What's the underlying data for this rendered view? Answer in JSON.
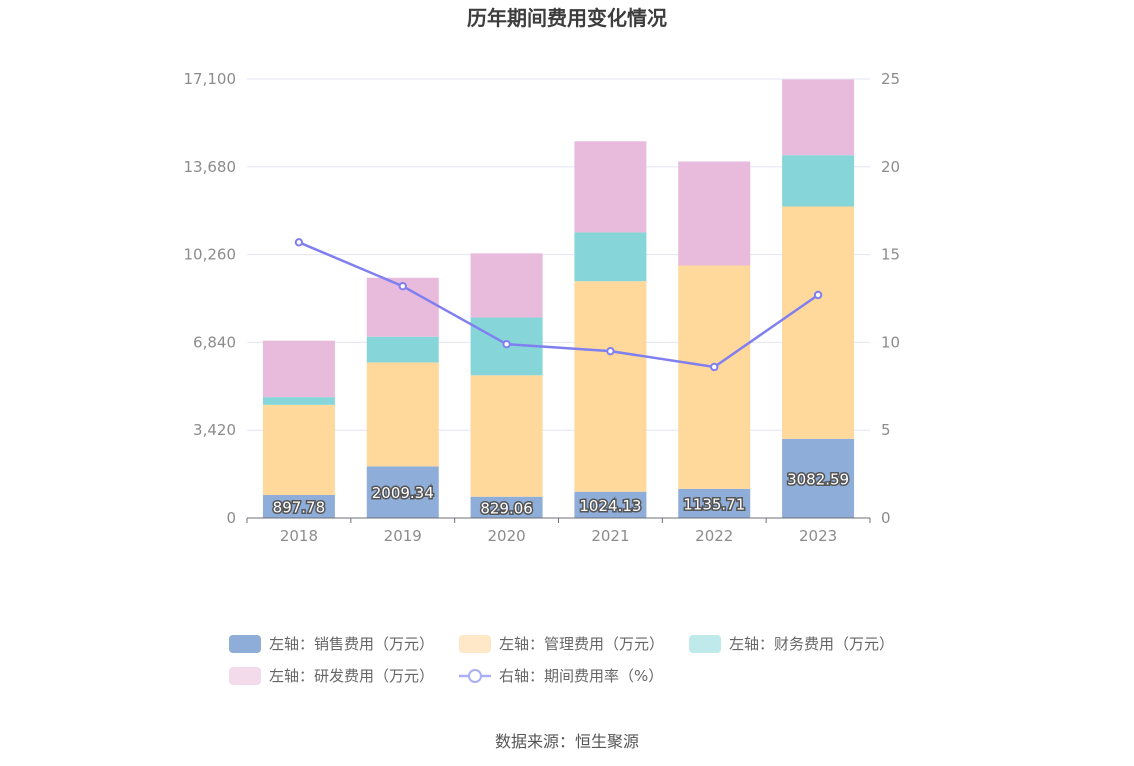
{
  "chart_data": {
    "type": "bar",
    "title": "历年期间费用变化情况",
    "categories": [
      "2018",
      "2019",
      "2020",
      "2021",
      "2022",
      "2023"
    ],
    "y_left": {
      "ticks": [
        "0",
        "3,420",
        "6,840",
        "10,260",
        "13,680",
        "17,100"
      ],
      "min": 0,
      "max": 17100
    },
    "y_right": {
      "ticks": [
        "0",
        "5",
        "10",
        "15",
        "20",
        "25"
      ],
      "min": 0,
      "max": 25
    },
    "grid": true,
    "legend_position": "bottom",
    "series": [
      {
        "name": "左轴：销售费用（万元）",
        "type": "bar",
        "axis": "left",
        "color": "#8eadd9",
        "show_labels": true,
        "values": [
          897.78,
          2009.34,
          829.06,
          1024.13,
          1135.71,
          3082.59
        ],
        "labels": [
          "897.78",
          "2009.34",
          "829.06",
          "1024.13",
          "1135.71",
          "3082.59"
        ]
      },
      {
        "name": "左轴：管理费用（万元）",
        "type": "bar",
        "axis": "left",
        "color": "#ffd89c",
        "values": [
          3510,
          4050,
          4730,
          8200,
          8700,
          9050
        ]
      },
      {
        "name": "左轴：财务费用（万元）",
        "type": "bar",
        "axis": "left",
        "color": "#86d6d9",
        "values": [
          300,
          1000,
          2250,
          1900,
          0,
          2000
        ]
      },
      {
        "name": "左轴：研发费用（万元）",
        "type": "bar",
        "axis": "left",
        "color": "#e8badb",
        "values": [
          2200,
          2300,
          2500,
          3550,
          4050,
          2950
        ]
      },
      {
        "name": "右轴：期间费用率（%）",
        "type": "line",
        "axis": "right",
        "color": "#7f7ff0",
        "values": [
          15.7,
          13.2,
          9.9,
          9.5,
          8.6,
          12.7
        ]
      }
    ],
    "legend_colors": [
      "#8eadd9",
      "#ffe8c8",
      "#bfe9ea",
      "#f3dbec",
      "#a9b0f5"
    ]
  },
  "source_text": "数据来源：恒生聚源"
}
